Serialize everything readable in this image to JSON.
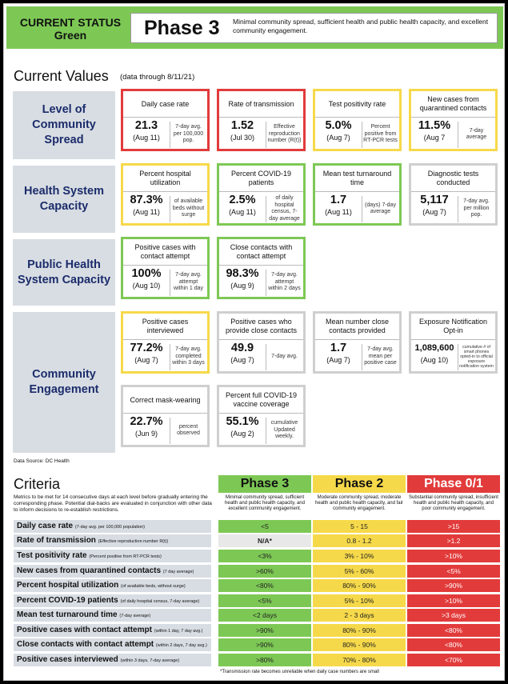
{
  "header": {
    "status_line1": "CURRENT STATUS",
    "status_line2": "Green",
    "phase": "Phase 3",
    "description": "Minimal community spread, sufficient health and public health capacity, and excellent community engagement.",
    "color": "#7dc855"
  },
  "current": {
    "title": "Current Values",
    "subtitle": "(data through 8/11/21)"
  },
  "categories": {
    "spread": "Level of Community Spread",
    "health": "Health System Capacity",
    "public": "Public Health System Capacity",
    "engagement": "Community Engagement"
  },
  "cards": {
    "daily_case_rate": {
      "title": "Daily case rate",
      "value": "21.3",
      "date": "(Aug 11)",
      "note": "7-day avg. per 100,000 pop.",
      "status": "red"
    },
    "rate_transmission": {
      "title": "Rate of transmission",
      "value": "1.52",
      "date": "(Jul 30)",
      "note": "Effective reproduction number (R(t))",
      "status": "red"
    },
    "test_positivity": {
      "title": "Test positivity rate",
      "value": "5.0%",
      "date": "(Aug 7)",
      "note": "Percent positive from RT-PCR tests",
      "status": "yellow"
    },
    "quarantined": {
      "title": "New cases from quarantined contacts",
      "value": "11.5%",
      "date": "(Aug 7",
      "note": "7-day average",
      "status": "yellow"
    },
    "hospital_util": {
      "title": "Percent hospital utilization",
      "value": "87.3%",
      "date": "(Aug 11)",
      "note": "of available beds without surge",
      "status": "yellow"
    },
    "covid_patients": {
      "title": "Percent COVID-19 patients",
      "value": "2.5%",
      "date": "(Aug 11)",
      "note": "of daily hospital census, 7-day average",
      "status": "green"
    },
    "turnaround": {
      "title": "Mean test turnaround time",
      "value": "1.7",
      "date": "(Aug 11)",
      "note": "(days) 7-day average",
      "status": "green"
    },
    "diagnostic": {
      "title": "Diagnostic tests conducted",
      "value": "5,117",
      "date": "(Aug 7)",
      "note": "7-day avg. per million pop.",
      "status": "gray"
    },
    "contact_attempt": {
      "title": "Positive cases with contact attempt",
      "value": "100%",
      "date": "(Aug 10)",
      "note": "7-day avg. attempt within 1 day",
      "status": "green"
    },
    "close_contacts_attempt": {
      "title": "Close contacts with contact attempt",
      "value": "98.3%",
      "date": "(Aug 9)",
      "note": "7-day avg. attempt within 2 days",
      "status": "green"
    },
    "interviewed": {
      "title": "Positive cases interviewed",
      "value": "77.2%",
      "date": "(Aug 7)",
      "note": "7-day avg. completed within 3 days",
      "status": "yellow"
    },
    "provide_contacts": {
      "title": "Positive cases who provide close contacts",
      "value": "49.9",
      "date": "(Aug 7)",
      "note": "7-day avg.",
      "status": "gray"
    },
    "mean_contacts": {
      "title": "Mean number close contacts provided",
      "value": "1.7",
      "date": "(Aug 7)",
      "note": "7-day avg. mean per positive case",
      "status": "gray"
    },
    "exposure": {
      "title": "Exposure Notification Opt-in",
      "value": "1,089,600",
      "date": "(Aug 10)",
      "note": "cumulative # of smart phones opted-in to official exposure notification system",
      "status": "gray"
    },
    "mask": {
      "title": "Correct mask-wearing",
      "value": "22.7%",
      "date": "(Jun 9)",
      "note": "percent observed",
      "status": "gray"
    },
    "vaccine": {
      "title": "Percent full COVID-19 vaccine coverage",
      "value": "55.1%",
      "date": "(Aug 2)",
      "note": "cumulative Updated weekly.",
      "status": "gray"
    }
  },
  "source": "Data Source: DC Health",
  "criteria": {
    "title": "Criteria",
    "description": "Metrics to be met for 14 consecutive days at each level before gradually entering the corresponding phase. Potential dial-backs are evaluated in conjunction with other data to inform decisions to re-establish restrictions.",
    "phases": [
      {
        "name": "Phase 3",
        "desc": "Minimal community spread, sufficient health and public health capacity, and excellent community engagement.",
        "color": "#7dc855"
      },
      {
        "name": "Phase 2",
        "desc": "Moderate community spread, moderate health and public health capacity, and fair community engagement.",
        "color": "#f6d94a"
      },
      {
        "name": "Phase 0/1",
        "desc": "Substantial community spread, insufficient health and public health capacity, and poor community engagement.",
        "color": "#e23b3b"
      }
    ],
    "rows": [
      {
        "label": "Daily case rate",
        "note": "(7-day avg. per 100,000 population)",
        "p3": "<5",
        "p2": "5 - 15",
        "p1": ">15"
      },
      {
        "label": "Rate of transmission",
        "note": "(Effective reproduction number R(t))",
        "p3": "N/A*",
        "p2": "0.8 - 1.2",
        "p1": ">1.2"
      },
      {
        "label": "Test positivity rate",
        "note": "(Percent positive from RT-PCR tests)",
        "p3": "<3%",
        "p2": "3% - 10%",
        "p1": ">10%"
      },
      {
        "label": "New cases from quarantined contacts",
        "note": "(7 day average)",
        "p3": ">60%",
        "p2": "5% - 60%",
        "p1": "<5%"
      },
      {
        "label": "Percent hospital utilization",
        "note": "(of available beds, without surge)",
        "p3": "<80%",
        "p2": "80% - 90%",
        "p1": ">90%"
      },
      {
        "label": "Percent COVID-19 patients",
        "note": "(of daily hospital census, 7-day average)",
        "p3": "<5%",
        "p2": "5% - 10%",
        "p1": ">10%"
      },
      {
        "label": "Mean test turnaround time",
        "note": "(7-day average)",
        "p3": "<2 days",
        "p2": "2 - 3 days",
        "p1": ">3 days"
      },
      {
        "label": "Positive cases with contact attempt",
        "note": "(within 1 day, 7 day avg.)",
        "p3": ">90%",
        "p2": "80% - 90%",
        "p1": "<80%"
      },
      {
        "label": "Close contacts with contact attempt",
        "note": "(within 2 days, 7 day avg.)",
        "p3": ">90%",
        "p2": "80% - 90%",
        "p1": "<80%"
      },
      {
        "label": "Positive cases interviewed",
        "note": "(within 3 days, 7-day average)",
        "p3": ">80%",
        "p2": "70% - 80%",
        "p1": "<70%"
      }
    ],
    "footnote": "*Transmission rate becomes unreliable when daily case numbers are small"
  }
}
